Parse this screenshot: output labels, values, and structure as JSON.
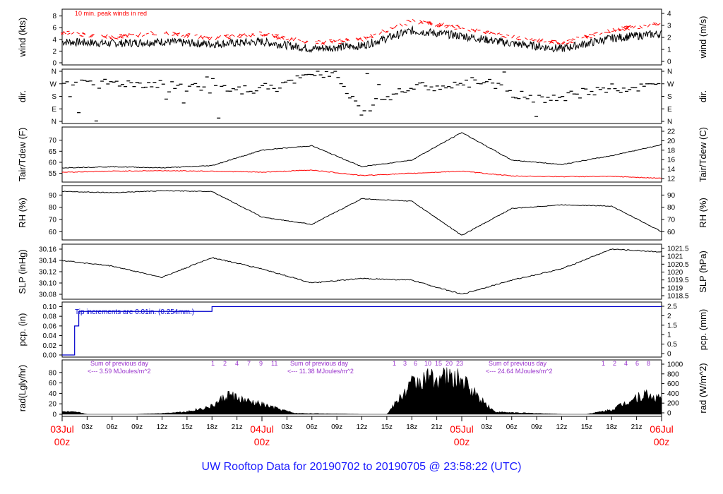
{
  "title": "UW Rooftop Data for 20190702  to  20190705 @ 23:58:22  (UTC)",
  "colors": {
    "axis": "#000000",
    "red": "#ff0000",
    "blue": "#0000cc",
    "purple": "#9933cc",
    "title": "#1a1aff"
  },
  "time_axis": {
    "ticks": [
      "03z",
      "06z",
      "09z",
      "12z",
      "15z",
      "18z",
      "21z",
      "03z",
      "06z",
      "09z",
      "12z",
      "15z",
      "18z",
      "21z",
      "03z",
      "06z",
      "09z",
      "12z",
      "15z",
      "18z",
      "21z"
    ],
    "day_labels": [
      {
        "day": "03Jul",
        "hour": "00z"
      },
      {
        "day": "04Jul",
        "hour": "00z"
      },
      {
        "day": "05Jul",
        "hour": "00z"
      },
      {
        "day": "06Jul",
        "hour": "00z"
      }
    ]
  },
  "chart_data": [
    {
      "type": "line",
      "panel": "wind",
      "ylabel_left": "wind (kts)",
      "ylabel_right": "wind (m/s)",
      "ylim": [
        0,
        8.8
      ],
      "yticks_left": [
        "0",
        "2",
        "4",
        "6",
        "8"
      ],
      "yticks_right": [
        "0",
        "1",
        "2",
        "3",
        "4"
      ],
      "annotation": "10 min. peak winds in red",
      "series": [
        {
          "name": "wind",
          "color": "#000000",
          "x": [
            0,
            6,
            12,
            18,
            24,
            30,
            36,
            42,
            48,
            54,
            60,
            66,
            72
          ],
          "values": [
            3.6,
            3.3,
            3.6,
            3.2,
            3.6,
            2.4,
            2.9,
            5.5,
            4.6,
            3.3,
            2.4,
            4.2,
            5.0
          ]
        },
        {
          "name": "peak",
          "color": "#ff0000",
          "x": [
            0,
            6,
            12,
            18,
            24,
            30,
            36,
            42,
            48,
            54,
            60,
            66,
            72
          ],
          "values": [
            5.0,
            4.2,
            5.0,
            4.0,
            4.8,
            3.2,
            3.8,
            7.0,
            5.8,
            4.2,
            3.2,
            5.4,
            6.6
          ]
        }
      ]
    },
    {
      "type": "scatter",
      "panel": "dir",
      "ylabel_left": "dir.",
      "ylabel_right": "dir.",
      "yticks": [
        "N",
        "W",
        "S",
        "E",
        "N"
      ],
      "series": [
        {
          "name": "dir",
          "color": "#000000",
          "x": [
            0,
            3,
            6,
            9,
            12,
            15,
            18,
            21,
            24,
            27,
            30,
            33,
            36,
            39,
            42,
            45,
            48,
            51,
            54,
            57,
            60,
            63,
            66,
            69,
            72
          ],
          "values": [
            250,
            265,
            275,
            270,
            265,
            250,
            230,
            215,
            240,
            255,
            360,
            340,
            70,
            180,
            240,
            250,
            255,
            300,
            190,
            170,
            165,
            210,
            230,
            240,
            250
          ]
        }
      ]
    },
    {
      "type": "line",
      "panel": "temp",
      "ylabel_left": "Tair/Tdew (F)",
      "ylabel_right": "Tair/Tdew (C)",
      "ylim": [
        52,
        75
      ],
      "yticks_left": [
        "55",
        "60",
        "65",
        "70"
      ],
      "yticks_right": [
        "12",
        "14",
        "16",
        "18",
        "20",
        "22"
      ],
      "series": [
        {
          "name": "Tair",
          "color": "#000000",
          "x": [
            0,
            6,
            12,
            18,
            24,
            30,
            36,
            42,
            48,
            54,
            60,
            66,
            72
          ],
          "values": [
            57.5,
            58.0,
            57.5,
            58.5,
            65.5,
            67.5,
            58.0,
            61.0,
            73.5,
            61.0,
            59.0,
            63.0,
            68.0
          ]
        },
        {
          "name": "Tdew",
          "color": "#ff0000",
          "x": [
            0,
            6,
            12,
            18,
            24,
            30,
            36,
            42,
            48,
            54,
            60,
            66,
            72
          ],
          "values": [
            55.5,
            56.0,
            56.2,
            56.0,
            55.5,
            56.5,
            54.0,
            55.0,
            56.0,
            53.8,
            53.5,
            53.6,
            52.8
          ]
        }
      ]
    },
    {
      "type": "line",
      "panel": "rh",
      "ylabel_left": "RH (%)",
      "ylabel_right": "RH (%)",
      "ylim": [
        55,
        96
      ],
      "yticks": [
        "60",
        "70",
        "80",
        "90"
      ],
      "series": [
        {
          "name": "RH",
          "color": "#000000",
          "x": [
            0,
            6,
            12,
            18,
            24,
            30,
            36,
            42,
            48,
            54,
            60,
            66,
            72
          ],
          "values": [
            93.0,
            92.0,
            93.5,
            93.0,
            72.0,
            66.0,
            87.0,
            85.0,
            57.0,
            79.0,
            82.0,
            81.0,
            60.0
          ]
        }
      ]
    },
    {
      "type": "line",
      "panel": "slp",
      "ylabel_left": "SLP (inHg)",
      "ylabel_right": "SLP (hPa)",
      "ylim": [
        30.075,
        30.165
      ],
      "yticks_left": [
        "30.08",
        "30.10",
        "30.12",
        "30.14",
        "30.16"
      ],
      "yticks_right": [
        "1018.5",
        "1019",
        "1019.5",
        "1020",
        "1020.5",
        "1021",
        "1021.5"
      ],
      "series": [
        {
          "name": "SLP",
          "color": "#000000",
          "x": [
            0,
            6,
            12,
            18,
            24,
            30,
            36,
            42,
            48,
            54,
            60,
            66,
            72
          ],
          "values": [
            30.14,
            30.13,
            30.11,
            30.145,
            30.125,
            30.1,
            30.108,
            30.105,
            30.08,
            30.105,
            30.125,
            30.16,
            30.155
          ]
        }
      ]
    },
    {
      "type": "line",
      "panel": "pcp",
      "ylabel_left": "pcp. (in)",
      "ylabel_right": "pcp. (mm)",
      "ylim": [
        0,
        0.105
      ],
      "yticks_left": [
        "0.00",
        "0.02",
        "0.04",
        "0.06",
        "0.08",
        "0.10"
      ],
      "yticks_right": [
        "0",
        "0.5",
        "1",
        "1.5",
        "2",
        "2.5"
      ],
      "annotation": "Tip increments are 0.01in. (0.254mm.)",
      "series": [
        {
          "name": "pcp",
          "color": "#0000cc",
          "x": [
            0,
            1,
            1.5,
            2,
            6,
            12,
            17,
            18,
            30,
            48,
            72
          ],
          "values": [
            0,
            0,
            0.06,
            0.09,
            0.09,
            0.09,
            0.09,
            0.1,
            0.1,
            0.1,
            0.1
          ]
        }
      ]
    },
    {
      "type": "area",
      "panel": "rad",
      "ylabel_left": "rad(Lgly/hr)",
      "ylabel_right": "rad (W/m^2)",
      "ylim": [
        0,
        100
      ],
      "yticks_left": [
        "0",
        "20",
        "40",
        "60",
        "80"
      ],
      "yticks_right": [
        "0",
        "200",
        "400",
        "600",
        "800",
        "1000"
      ],
      "annotations": [
        {
          "line1": "Sum of previous day",
          "line2": "<--- 3.59 MJoules/m^2"
        },
        {
          "line1": "Sum of previous day",
          "line2": "<--- 11.38 MJoules/m^2"
        },
        {
          "line1": "Sum of previous day",
          "line2": "<--- 24.64 MJoules/m^2"
        }
      ],
      "hour_marks": [
        [
          "1",
          "2",
          "4",
          "7",
          "9",
          "11"
        ],
        [
          "1",
          "3",
          "6",
          "10",
          "15",
          "20",
          "23"
        ],
        [
          "1",
          "2",
          "4",
          "6",
          "8"
        ]
      ],
      "series": [
        {
          "name": "rad",
          "color": "#000000",
          "x": [
            0,
            2,
            3,
            9,
            12,
            15,
            18,
            20,
            22,
            24,
            26,
            28,
            36,
            39,
            42,
            44,
            46,
            48,
            50,
            52,
            60,
            63,
            66,
            69,
            70,
            72
          ],
          "values": [
            6,
            4,
            0,
            0,
            2,
            6,
            18,
            45,
            30,
            22,
            12,
            2,
            0,
            0,
            70,
            82,
            85,
            78,
            40,
            5,
            0,
            0,
            10,
            40,
            45,
            35
          ]
        }
      ]
    }
  ]
}
